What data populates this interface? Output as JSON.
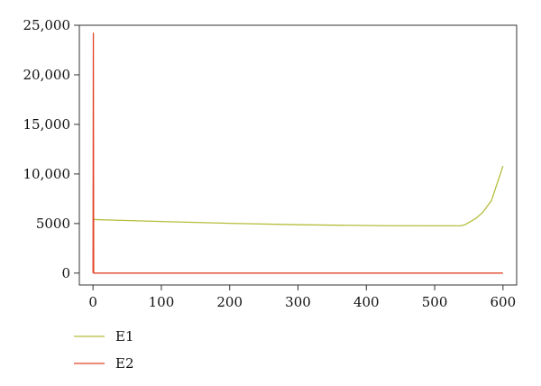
{
  "chart_data": {
    "type": "line",
    "title": "",
    "xlabel": "",
    "ylabel": "",
    "xlim": [
      -20,
      620
    ],
    "ylim": [
      -1200,
      25000
    ],
    "x_ticks": [
      0,
      100,
      200,
      300,
      400,
      500,
      600
    ],
    "x_tick_labels": [
      "0",
      "100",
      "200",
      "300",
      "400",
      "500",
      "600"
    ],
    "y_ticks": [
      0,
      5000,
      10000,
      15000,
      20000,
      25000
    ],
    "y_tick_labels": [
      "0",
      "5000",
      "10,000",
      "15,000",
      "20,000",
      "25,000"
    ],
    "grid": false,
    "legend_position": "bottom-left",
    "series": [
      {
        "name": "E1",
        "color": "#b5bd3c",
        "x": [
          0,
          1,
          100,
          200,
          300,
          420,
          500,
          538,
          545,
          560,
          570,
          583,
          600
        ],
        "y": [
          5400,
          5400,
          5200,
          5020,
          4880,
          4780,
          4770,
          4770,
          4900,
          5500,
          6100,
          7300,
          10800
        ]
      },
      {
        "name": "E2",
        "color": "#e2452a",
        "x": [
          0,
          0.5,
          1,
          2,
          100,
          200,
          300,
          400,
          500,
          600
        ],
        "y": [
          0,
          24200,
          0,
          0,
          0,
          0,
          0,
          0,
          0,
          0
        ]
      }
    ]
  }
}
